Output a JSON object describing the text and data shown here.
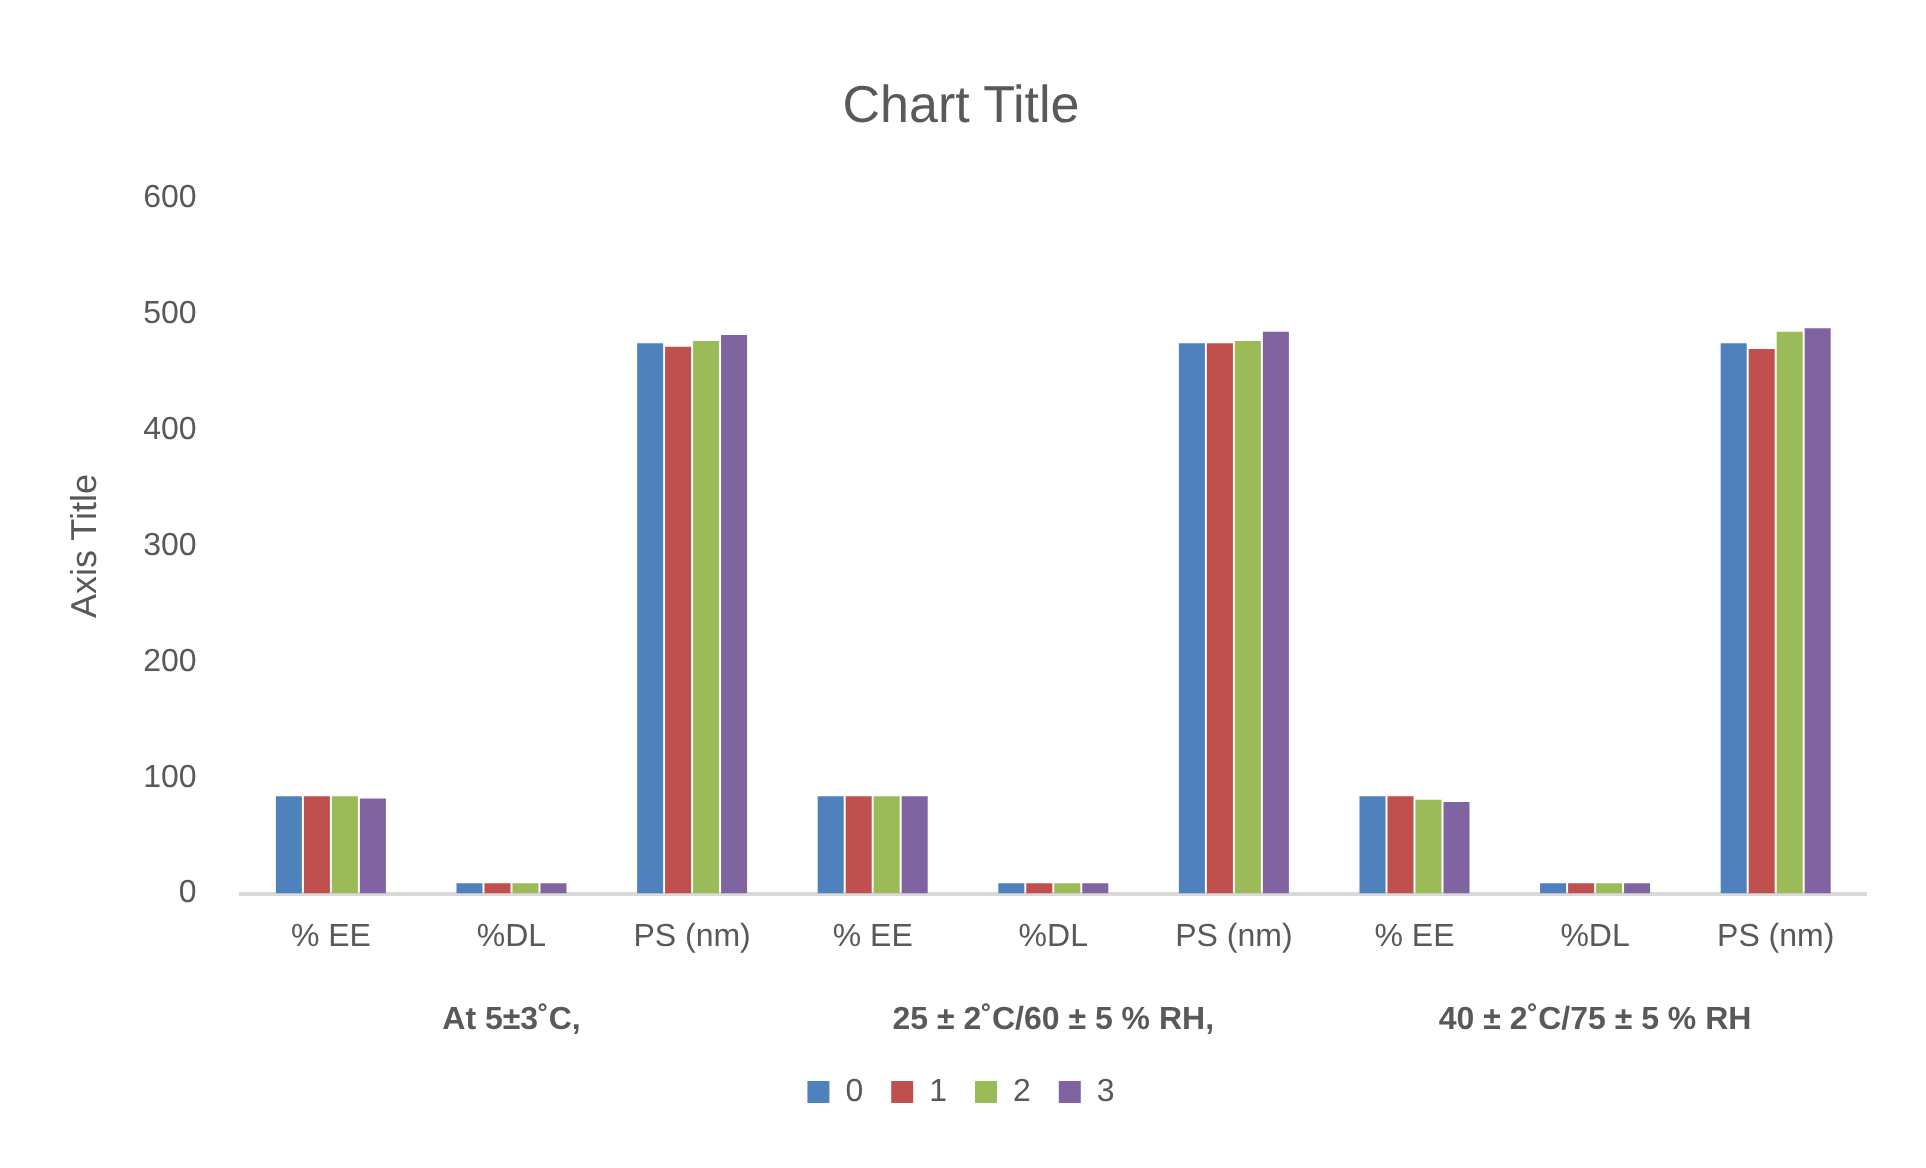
{
  "chart_data": {
    "type": "bar",
    "title": "Chart Title",
    "ylabel": "Axis Title",
    "categories": [
      "% EE",
      "%DL",
      "PS (nm)",
      "% EE",
      "%DL",
      "PS (nm)",
      "% EE",
      "%DL",
      "PS (nm)"
    ],
    "annotations": [
      "At 5±3˚C,",
      "25 ± 2˚C/60 ± 5 % RH,",
      "40 ± 2˚C/75 ± 5 % RH"
    ],
    "series": [
      {
        "name": "0",
        "color": "#4f81bd",
        "values": [
          84,
          9,
          475,
          84,
          9,
          475,
          84,
          9,
          475
        ]
      },
      {
        "name": "1",
        "color": "#c0504d",
        "values": [
          84,
          9,
          472,
          84,
          9,
          475,
          84,
          9,
          470
        ]
      },
      {
        "name": "2",
        "color": "#9bbb59",
        "values": [
          84,
          9,
          477,
          84,
          9,
          477,
          81,
          9,
          485
        ]
      },
      {
        "name": "3",
        "color": "#8064a2",
        "values": [
          82,
          9,
          482,
          84,
          9,
          485,
          79,
          9,
          488
        ]
      }
    ],
    "ylim": [
      0,
      600
    ],
    "yticks": [
      0,
      100,
      200,
      300,
      400,
      500,
      600
    ],
    "grid": false,
    "legend": "bottom"
  }
}
